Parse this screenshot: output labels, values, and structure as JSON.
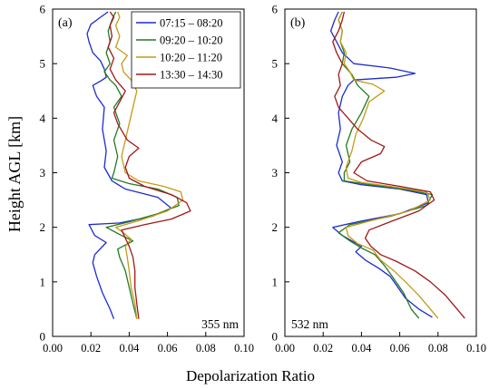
{
  "figure": {
    "ylabel": "Height AGL [km]",
    "xlabel": "Depolarization Ratio"
  },
  "chart_data": [
    {
      "type": "line",
      "panel_label": "(a)",
      "annotation": "355 nm",
      "xlim": [
        0.0,
        0.1
      ],
      "ylim": [
        0,
        6
      ],
      "xticks": [
        "0.00",
        "0.02",
        "0.04",
        "0.06",
        "0.08",
        "0.10"
      ],
      "yticks": [
        "0",
        "1",
        "2",
        "3",
        "4",
        "5",
        "6"
      ],
      "legend_position": "top-right",
      "series": [
        {
          "name": "07:15 – 08:20",
          "color": "#1f2bd0",
          "points": [
            [
              0.032,
              0.32
            ],
            [
              0.03,
              0.5
            ],
            [
              0.026,
              0.8
            ],
            [
              0.023,
              1.1
            ],
            [
              0.021,
              1.35
            ],
            [
              0.022,
              1.5
            ],
            [
              0.028,
              1.72
            ],
            [
              0.022,
              1.85
            ],
            [
              0.019,
              2.05
            ],
            [
              0.035,
              2.08
            ],
            [
              0.052,
              2.2
            ],
            [
              0.062,
              2.35
            ],
            [
              0.055,
              2.55
            ],
            [
              0.038,
              2.7
            ],
            [
              0.031,
              2.85
            ],
            [
              0.027,
              3.1
            ],
            [
              0.028,
              3.4
            ],
            [
              0.026,
              3.8
            ],
            [
              0.027,
              4.2
            ],
            [
              0.023,
              4.4
            ],
            [
              0.021,
              4.6
            ],
            [
              0.025,
              4.68
            ],
            [
              0.028,
              4.75
            ],
            [
              0.027,
              4.9
            ],
            [
              0.025,
              5.05
            ],
            [
              0.021,
              5.2
            ],
            [
              0.019,
              5.4
            ],
            [
              0.018,
              5.55
            ],
            [
              0.02,
              5.72
            ],
            [
              0.025,
              5.85
            ],
            [
              0.029,
              5.95
            ]
          ]
        },
        {
          "name": "09:20 – 10:20",
          "color": "#237a23",
          "points": [
            [
              0.044,
              0.32
            ],
            [
              0.042,
              0.6
            ],
            [
              0.04,
              0.9
            ],
            [
              0.038,
              1.2
            ],
            [
              0.035,
              1.45
            ],
            [
              0.034,
              1.6
            ],
            [
              0.042,
              1.75
            ],
            [
              0.036,
              1.85
            ],
            [
              0.028,
              2.0
            ],
            [
              0.04,
              2.1
            ],
            [
              0.055,
              2.25
            ],
            [
              0.066,
              2.4
            ],
            [
              0.065,
              2.55
            ],
            [
              0.055,
              2.7
            ],
            [
              0.04,
              2.8
            ],
            [
              0.031,
              2.9
            ],
            [
              0.032,
              3.0
            ],
            [
              0.034,
              3.3
            ],
            [
              0.032,
              3.6
            ],
            [
              0.035,
              3.9
            ],
            [
              0.032,
              4.2
            ],
            [
              0.036,
              4.4
            ],
            [
              0.033,
              4.6
            ],
            [
              0.03,
              4.7
            ],
            [
              0.027,
              4.85
            ],
            [
              0.03,
              5.0
            ],
            [
              0.028,
              5.2
            ],
            [
              0.03,
              5.4
            ],
            [
              0.029,
              5.6
            ],
            [
              0.031,
              5.8
            ],
            [
              0.033,
              5.95
            ]
          ]
        },
        {
          "name": "10:20 – 11:20",
          "color": "#c49a18",
          "points": [
            [
              0.044,
              0.32
            ],
            [
              0.043,
              0.6
            ],
            [
              0.041,
              0.9
            ],
            [
              0.04,
              1.2
            ],
            [
              0.039,
              1.45
            ],
            [
              0.038,
              1.65
            ],
            [
              0.041,
              1.78
            ],
            [
              0.037,
              1.9
            ],
            [
              0.033,
              2.0
            ],
            [
              0.045,
              2.12
            ],
            [
              0.06,
              2.3
            ],
            [
              0.068,
              2.5
            ],
            [
              0.067,
              2.65
            ],
            [
              0.058,
              2.75
            ],
            [
              0.045,
              2.85
            ],
            [
              0.038,
              3.0
            ],
            [
              0.036,
              3.3
            ],
            [
              0.038,
              3.6
            ],
            [
              0.04,
              3.9
            ],
            [
              0.042,
              4.2
            ],
            [
              0.044,
              4.5
            ],
            [
              0.041,
              4.7
            ],
            [
              0.037,
              4.85
            ],
            [
              0.036,
              5.0
            ],
            [
              0.039,
              5.15
            ],
            [
              0.033,
              5.3
            ],
            [
              0.035,
              5.5
            ],
            [
              0.033,
              5.7
            ],
            [
              0.035,
              5.85
            ],
            [
              0.034,
              5.95
            ]
          ]
        },
        {
          "name": "13:30 – 14:30",
          "color": "#a01818",
          "points": [
            [
              0.045,
              0.32
            ],
            [
              0.044,
              0.6
            ],
            [
              0.043,
              0.9
            ],
            [
              0.043,
              1.2
            ],
            [
              0.042,
              1.45
            ],
            [
              0.04,
              1.65
            ],
            [
              0.038,
              1.8
            ],
            [
              0.036,
              1.95
            ],
            [
              0.048,
              2.05
            ],
            [
              0.062,
              2.15
            ],
            [
              0.072,
              2.3
            ],
            [
              0.07,
              2.45
            ],
            [
              0.062,
              2.6
            ],
            [
              0.048,
              2.75
            ],
            [
              0.04,
              2.9
            ],
            [
              0.038,
              3.1
            ],
            [
              0.04,
              3.3
            ],
            [
              0.045,
              3.45
            ],
            [
              0.039,
              3.6
            ],
            [
              0.034,
              3.9
            ],
            [
              0.032,
              4.1
            ],
            [
              0.035,
              4.3
            ],
            [
              0.038,
              4.5
            ],
            [
              0.033,
              4.7
            ],
            [
              0.03,
              4.9
            ],
            [
              0.032,
              5.1
            ],
            [
              0.029,
              5.3
            ],
            [
              0.031,
              5.5
            ],
            [
              0.03,
              5.7
            ],
            [
              0.032,
              5.85
            ],
            [
              0.03,
              5.95
            ]
          ]
        }
      ]
    },
    {
      "type": "line",
      "panel_label": "(b)",
      "annotation": "532 nm",
      "xlim": [
        0.0,
        0.1
      ],
      "ylim": [
        0,
        6
      ],
      "xticks": [
        "0.00",
        "0.02",
        "0.04",
        "0.06",
        "0.08",
        "0.10"
      ],
      "yticks": [
        "0",
        "1",
        "2",
        "3",
        "4",
        "5",
        "6"
      ],
      "series": [
        {
          "name": "07:15 – 08:20",
          "color": "#1f2bd0",
          "points": [
            [
              0.077,
              0.35
            ],
            [
              0.07,
              0.5
            ],
            [
              0.063,
              0.7
            ],
            [
              0.058,
              0.95
            ],
            [
              0.055,
              1.1
            ],
            [
              0.049,
              1.25
            ],
            [
              0.042,
              1.4
            ],
            [
              0.037,
              1.55
            ],
            [
              0.04,
              1.65
            ],
            [
              0.03,
              1.85
            ],
            [
              0.025,
              2.0
            ],
            [
              0.038,
              2.1
            ],
            [
              0.06,
              2.25
            ],
            [
              0.075,
              2.45
            ],
            [
              0.074,
              2.6
            ],
            [
              0.06,
              2.7
            ],
            [
              0.04,
              2.78
            ],
            [
              0.03,
              2.85
            ],
            [
              0.028,
              3.0
            ],
            [
              0.03,
              3.2
            ],
            [
              0.027,
              3.5
            ],
            [
              0.029,
              3.8
            ],
            [
              0.028,
              4.1
            ],
            [
              0.03,
              4.4
            ],
            [
              0.033,
              4.6
            ],
            [
              0.036,
              4.7
            ],
            [
              0.058,
              4.75
            ],
            [
              0.068,
              4.82
            ],
            [
              0.055,
              4.92
            ],
            [
              0.036,
              5.0
            ],
            [
              0.03,
              5.2
            ],
            [
              0.027,
              5.4
            ],
            [
              0.024,
              5.6
            ],
            [
              0.026,
              5.8
            ],
            [
              0.028,
              5.95
            ]
          ]
        },
        {
          "name": "09:20 – 10:20",
          "color": "#237a23",
          "points": [
            [
              0.07,
              0.33
            ],
            [
              0.066,
              0.5
            ],
            [
              0.062,
              0.8
            ],
            [
              0.056,
              1.1
            ],
            [
              0.052,
              1.3
            ],
            [
              0.047,
              1.5
            ],
            [
              0.04,
              1.62
            ],
            [
              0.034,
              1.75
            ],
            [
              0.028,
              1.9
            ],
            [
              0.034,
              2.05
            ],
            [
              0.055,
              2.2
            ],
            [
              0.074,
              2.4
            ],
            [
              0.077,
              2.6
            ],
            [
              0.062,
              2.7
            ],
            [
              0.045,
              2.78
            ],
            [
              0.031,
              2.85
            ],
            [
              0.031,
              3.0
            ],
            [
              0.034,
              3.2
            ],
            [
              0.032,
              3.5
            ],
            [
              0.035,
              3.8
            ],
            [
              0.04,
              4.1
            ],
            [
              0.044,
              4.4
            ],
            [
              0.038,
              4.6
            ],
            [
              0.035,
              4.8
            ],
            [
              0.03,
              5.0
            ],
            [
              0.031,
              5.2
            ],
            [
              0.029,
              5.4
            ],
            [
              0.03,
              5.6
            ],
            [
              0.028,
              5.8
            ],
            [
              0.03,
              5.95
            ]
          ]
        },
        {
          "name": "10:20 – 11:20",
          "color": "#c49a18",
          "points": [
            [
              0.08,
              0.33
            ],
            [
              0.076,
              0.5
            ],
            [
              0.07,
              0.75
            ],
            [
              0.063,
              1.0
            ],
            [
              0.057,
              1.2
            ],
            [
              0.05,
              1.4
            ],
            [
              0.046,
              1.58
            ],
            [
              0.038,
              1.7
            ],
            [
              0.033,
              1.85
            ],
            [
              0.032,
              2.0
            ],
            [
              0.045,
              2.12
            ],
            [
              0.065,
              2.3
            ],
            [
              0.076,
              2.5
            ],
            [
              0.074,
              2.65
            ],
            [
              0.055,
              2.75
            ],
            [
              0.04,
              2.82
            ],
            [
              0.033,
              2.9
            ],
            [
              0.032,
              3.1
            ],
            [
              0.035,
              3.4
            ],
            [
              0.037,
              3.7
            ],
            [
              0.041,
              4.0
            ],
            [
              0.044,
              4.3
            ],
            [
              0.052,
              4.5
            ],
            [
              0.046,
              4.62
            ],
            [
              0.036,
              4.7
            ],
            [
              0.034,
              4.85
            ],
            [
              0.031,
              5.0
            ],
            [
              0.032,
              5.2
            ],
            [
              0.029,
              5.4
            ],
            [
              0.03,
              5.6
            ],
            [
              0.028,
              5.8
            ],
            [
              0.03,
              5.95
            ]
          ]
        },
        {
          "name": "13:30 – 14:30",
          "color": "#a01818",
          "points": [
            [
              0.094,
              0.33
            ],
            [
              0.09,
              0.5
            ],
            [
              0.084,
              0.75
            ],
            [
              0.076,
              1.0
            ],
            [
              0.068,
              1.2
            ],
            [
              0.058,
              1.38
            ],
            [
              0.05,
              1.5
            ],
            [
              0.045,
              1.65
            ],
            [
              0.042,
              1.8
            ],
            [
              0.044,
              1.95
            ],
            [
              0.055,
              2.1
            ],
            [
              0.07,
              2.3
            ],
            [
              0.078,
              2.5
            ],
            [
              0.076,
              2.65
            ],
            [
              0.06,
              2.75
            ],
            [
              0.043,
              2.85
            ],
            [
              0.036,
              3.0
            ],
            [
              0.04,
              3.2
            ],
            [
              0.05,
              3.35
            ],
            [
              0.052,
              3.48
            ],
            [
              0.045,
              3.6
            ],
            [
              0.038,
              3.8
            ],
            [
              0.033,
              4.0
            ],
            [
              0.028,
              4.2
            ],
            [
              0.026,
              4.4
            ],
            [
              0.029,
              4.6
            ],
            [
              0.028,
              4.8
            ],
            [
              0.03,
              5.0
            ],
            [
              0.027,
              5.2
            ],
            [
              0.025,
              5.4
            ],
            [
              0.028,
              5.6
            ],
            [
              0.03,
              5.8
            ],
            [
              0.031,
              5.95
            ]
          ]
        }
      ]
    }
  ]
}
